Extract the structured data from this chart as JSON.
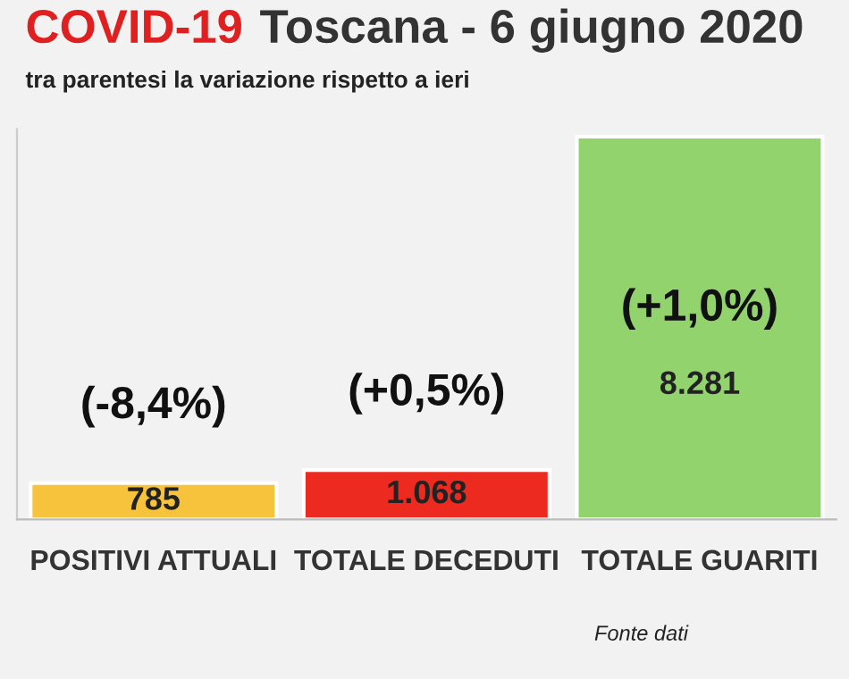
{
  "chart_data": {
    "type": "bar",
    "title": "COVID-19",
    "subtitle": "Toscana - 6 giugno 2020",
    "categories": [
      "POSITIVI ATTUALI",
      "TOTALE DECEDUTI",
      "TOTALE GUARITI"
    ],
    "values": [
      785,
      1068,
      8281
    ],
    "colors": [
      "#f7c33c",
      "#ec2a1f",
      "#92d36e"
    ],
    "value_labels": [
      "785",
      "1.068",
      "8.281"
    ],
    "annotations": [
      "tra parentesi la variazione rispetto a ieri",
      "(-8,4%)",
      "(+0,5%)",
      "(+1,0%)",
      "Fonte dati"
    ],
    "grid": false,
    "legend": false
  }
}
